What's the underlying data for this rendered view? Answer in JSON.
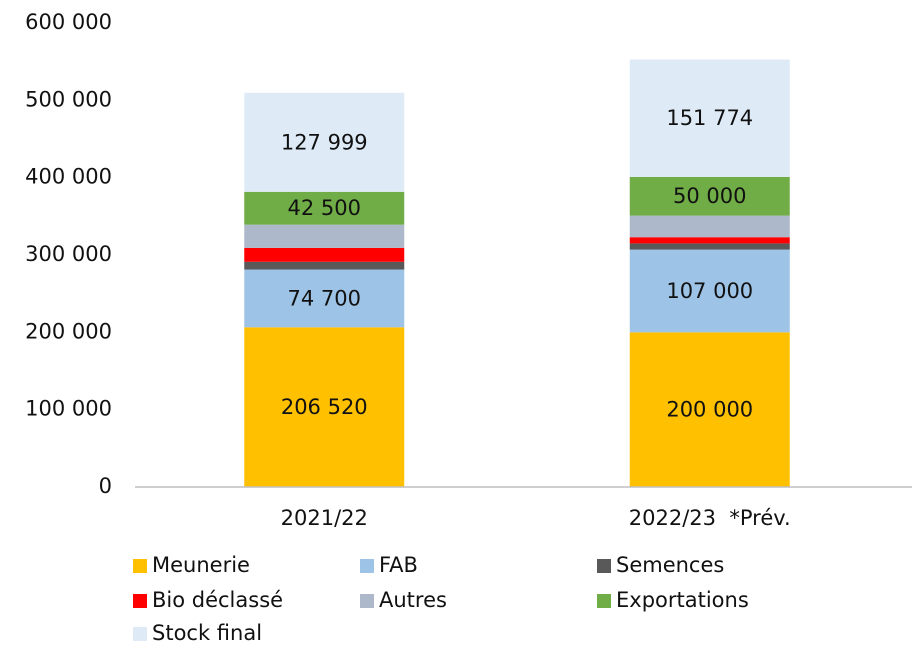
{
  "chart_data": {
    "type": "stacked_bar",
    "categories": [
      "2021/22",
      "2022/23  *Prév."
    ],
    "series": [
      {
        "name": "Meunerie",
        "color": "#ffc000",
        "values": [
          206520,
          200000
        ],
        "value_labels": [
          "206 520",
          "200 000"
        ]
      },
      {
        "name": "FAB",
        "color": "#9dc3e6",
        "values": [
          74700,
          107000
        ],
        "value_labels": [
          "74 700",
          "107 000"
        ]
      },
      {
        "name": "Semences",
        "color": "#595959",
        "values": [
          10000,
          8000
        ]
      },
      {
        "name": "Bio déclassé",
        "color": "#ff0000",
        "values": [
          18000,
          8000
        ]
      },
      {
        "name": "Autres",
        "color": "#adb9ca",
        "values": [
          30000,
          28000
        ]
      },
      {
        "name": "Exportations",
        "color": "#70ad47",
        "values": [
          42500,
          50000
        ],
        "value_labels": [
          "42 500",
          "50 000"
        ]
      },
      {
        "name": "Stock final",
        "color": "#deebf7",
        "values": [
          127999,
          151774
        ],
        "value_labels": [
          "127 999",
          "151 774"
        ]
      }
    ],
    "ylim": [
      0,
      600000
    ],
    "yticks": [
      0,
      {
        "value": 100000,
        "label": "100 000"
      },
      {
        "value": 200000,
        "label": "200 000"
      },
      {
        "value": 300000,
        "label": "300 000"
      },
      {
        "value": 400000,
        "label": "400 000"
      },
      {
        "value": 500000,
        "label": "500 000"
      },
      {
        "value": 600000,
        "label": "600 000"
      }
    ],
    "grid": false
  }
}
